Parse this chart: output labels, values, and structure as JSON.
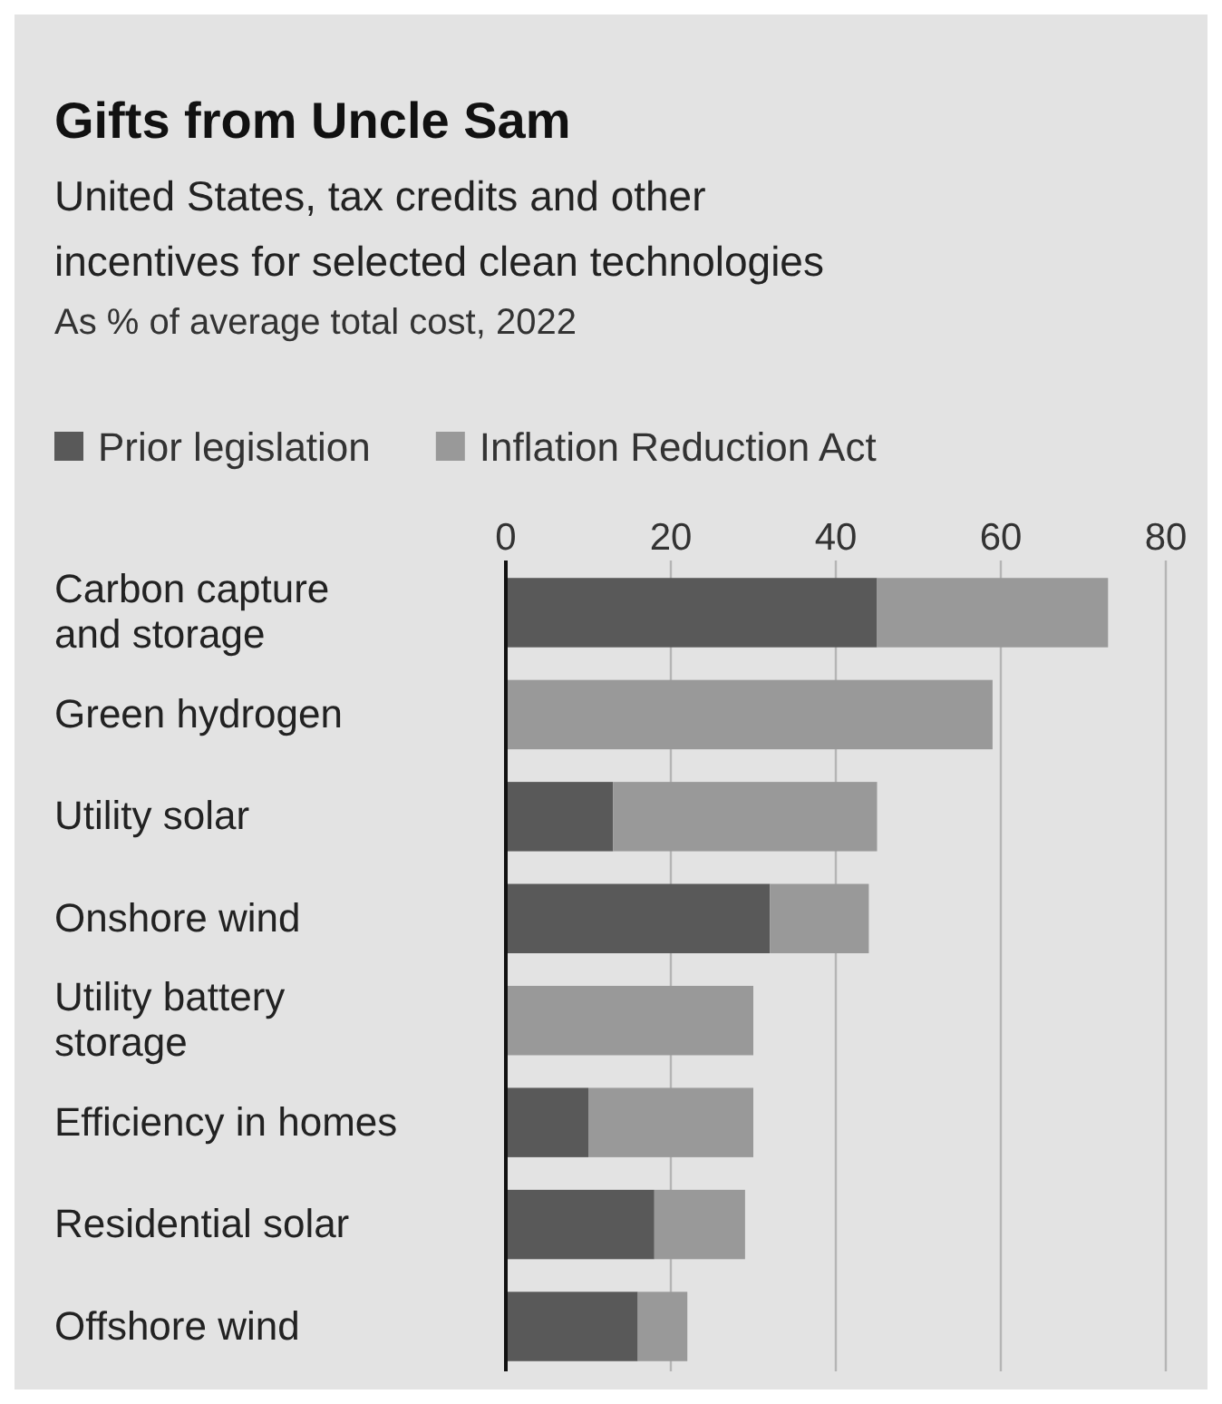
{
  "chart_data": {
    "type": "bar",
    "orientation": "horizontal",
    "stacked": true,
    "title": "Gifts from Uncle Sam",
    "subtitle": "United States, tax credits and other incentives for selected clean technologies",
    "xlabel": "As % of average total cost, 2022",
    "categories": [
      "Carbon capture and storage",
      "Green hydrogen",
      "Utility solar",
      "Onshore wind",
      "Utility battery storage",
      "Efficiency in homes",
      "Residential solar",
      "Offshore wind"
    ],
    "series": [
      {
        "name": "Prior legislation",
        "color": "#595959",
        "values": [
          45,
          0,
          13,
          32,
          0,
          10,
          18,
          16
        ]
      },
      {
        "name": "Inflation Reduction Act",
        "color": "#999999",
        "values": [
          28,
          59,
          32,
          12,
          30,
          20,
          11,
          6
        ]
      }
    ],
    "xlim": [
      0,
      80
    ],
    "xticks": [
      0,
      20,
      40,
      60,
      80
    ],
    "grid": "x",
    "legend": "top left"
  }
}
